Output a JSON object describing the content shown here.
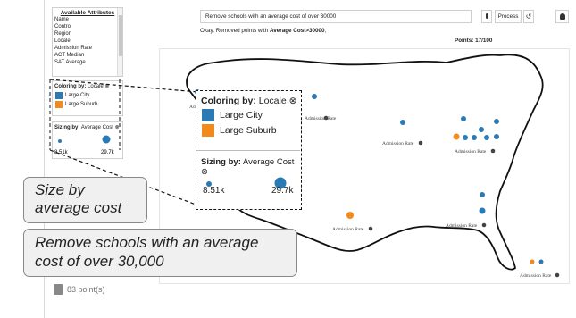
{
  "sidebar": {
    "attributes_title": "Available Attributes",
    "attributes": [
      "Name",
      "Control",
      "Region",
      "Locale",
      "Admission Rate",
      "ACT Median",
      "SAT Average"
    ],
    "color_legend": {
      "title_bold": "Coloring by:",
      "title_field": "Locale",
      "items": [
        {
          "label": "Large City",
          "color": "#2a7ab6"
        },
        {
          "label": "Large Suburb",
          "color": "#f28a1b"
        }
      ]
    },
    "size_legend": {
      "title_bold": "Sizing by:",
      "title_field": "Average Cost",
      "min_label": "8.51k",
      "max_label": "29.7k"
    },
    "points_count": "83 point(s)"
  },
  "toolbar": {
    "query_value": "Remove schools with an average cost of over 30000",
    "process_label": "Process",
    "undo_icon": "↺"
  },
  "status": {
    "prefix": "Okay. Removed points with ",
    "highlight": "Average Cost>30000",
    "suffix": ";",
    "points_label": "Points: 17/100"
  },
  "map": {
    "labels": [
      "Admission Rate",
      "Admission Rate",
      "Admission Rate",
      "Admission Rate",
      "Admission Rate",
      "Admission Rate",
      "Admission Rate"
    ],
    "label_icon": "close-circle-icon"
  },
  "zoom_legend": {
    "color_title_bold": "Coloring by:",
    "color_title_field": "Locale",
    "items": [
      {
        "label": "Large City",
        "color": "#2a7ab6"
      },
      {
        "label": "Large Suburb",
        "color": "#f28a1b"
      }
    ],
    "size_title_bold": "Sizing by:",
    "size_title_field": "Average Cost",
    "min_label": "8.51k",
    "max_label": "29.7k"
  },
  "callouts": {
    "size": [
      "Size by",
      "average cost"
    ],
    "remove": [
      "Remove schools with an average",
      "cost of over 30,000"
    ]
  },
  "colors": {
    "city": "#2a7ab6",
    "suburb": "#f28a1b"
  }
}
